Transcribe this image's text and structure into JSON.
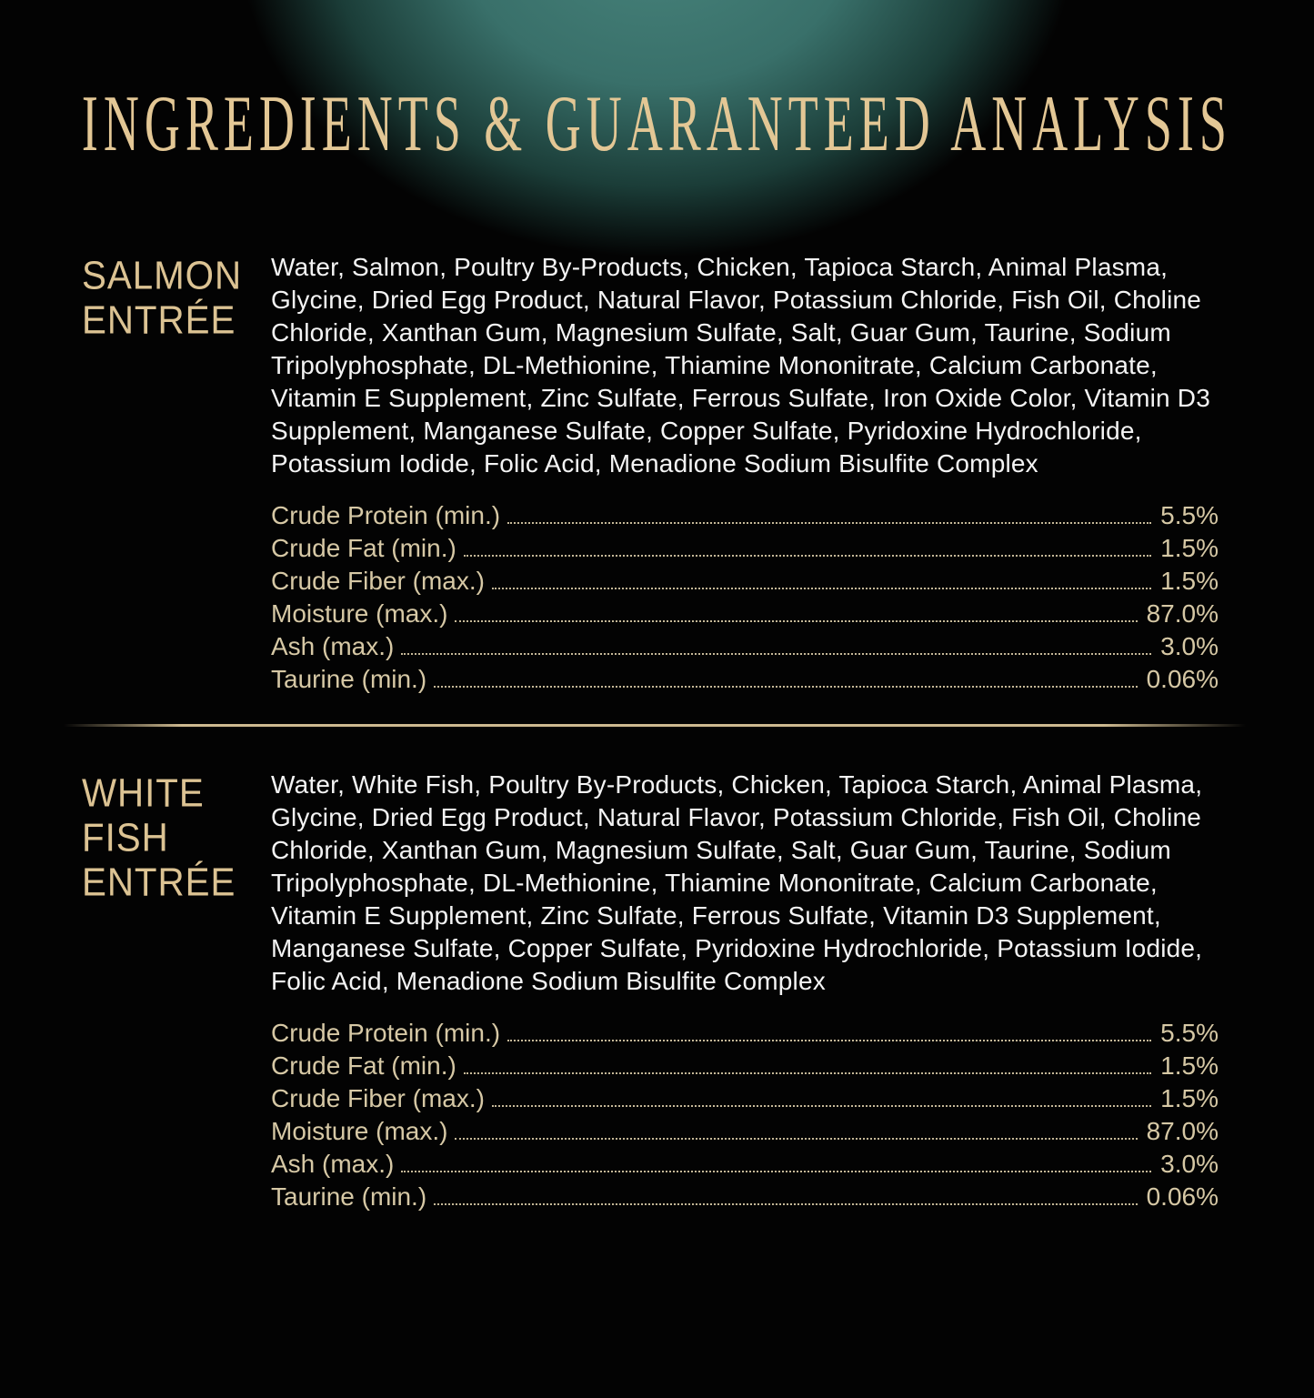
{
  "title": "INGREDIENTS & GUARANTEED ANALYSIS",
  "colors": {
    "background": "#030303",
    "glow": "#47837b",
    "gold": "#e3c795",
    "label_gold": "#dcc393",
    "analysis_gold": "#d6c8a5",
    "body_text": "#f4f4f4",
    "divider_gold": "#cdb990"
  },
  "sections": [
    {
      "name": "SALMON ENTRÉE",
      "name_lines": [
        "SALMON",
        "ENTRÉE",
        ""
      ],
      "ingredients": "Water, Salmon, Poultry By-Products, Chicken, Tapioca Starch, Animal Plasma, Glycine, Dried Egg Product, Natural Flavor, Potassium Chloride, Fish Oil, Choline Chloride, Xanthan Gum, Magnesium Sulfate, Salt, Guar Gum, Taurine, Sodium Tripolyphosphate, DL-Methionine, Thiamine Mononitrate, Calcium Carbonate, Vitamin E Supplement, Zinc Sulfate, Ferrous Sulfate, Iron Oxide Color, Vitamin D3 Supplement, Manganese Sulfate, Copper Sulfate, Pyridoxine Hydrochloride, Potassium Iodide, Folic Acid, Menadione Sodium Bisulfite Complex",
      "analysis": [
        {
          "label": "Crude Protein (min.)",
          "value": "5.5%"
        },
        {
          "label": "Crude Fat (min.)",
          "value": "1.5%"
        },
        {
          "label": "Crude Fiber (max.)",
          "value": "1.5%"
        },
        {
          "label": "Moisture (max.)",
          "value": "87.0%"
        },
        {
          "label": "Ash (max.)",
          "value": "3.0%"
        },
        {
          "label": "Taurine (min.)",
          "value": "0.06%"
        }
      ]
    },
    {
      "name": "WHITE FISH ENTRÉE",
      "name_lines": [
        "WHITE",
        "FISH",
        "ENTRÉE"
      ],
      "ingredients": "Water, White Fish, Poultry By-Products, Chicken, Tapioca Starch, Animal Plasma, Glycine, Dried Egg Product, Natural Flavor, Potassium Chloride, Fish Oil, Choline Chloride, Xanthan Gum, Magnesium Sulfate, Salt, Guar Gum, Taurine, Sodium Tripolyphosphate, DL-Methionine, Thiamine Mononitrate, Calcium Carbonate, Vitamin E Supplement, Zinc Sulfate, Ferrous Sulfate, Vitamin D3 Supplement, Manganese Sulfate, Copper Sulfate, Pyridoxine Hydrochloride, Potassium Iodide, Folic Acid, Menadione Sodium Bisulfite Complex",
      "analysis": [
        {
          "label": "Crude Protein (min.)",
          "value": "5.5%"
        },
        {
          "label": "Crude Fat (min.)",
          "value": "1.5%"
        },
        {
          "label": "Crude Fiber (max.)",
          "value": "1.5%"
        },
        {
          "label": "Moisture (max.)",
          "value": "87.0%"
        },
        {
          "label": "Ash (max.)",
          "value": "3.0%"
        },
        {
          "label": "Taurine (min.)",
          "value": "0.06%"
        }
      ]
    }
  ]
}
